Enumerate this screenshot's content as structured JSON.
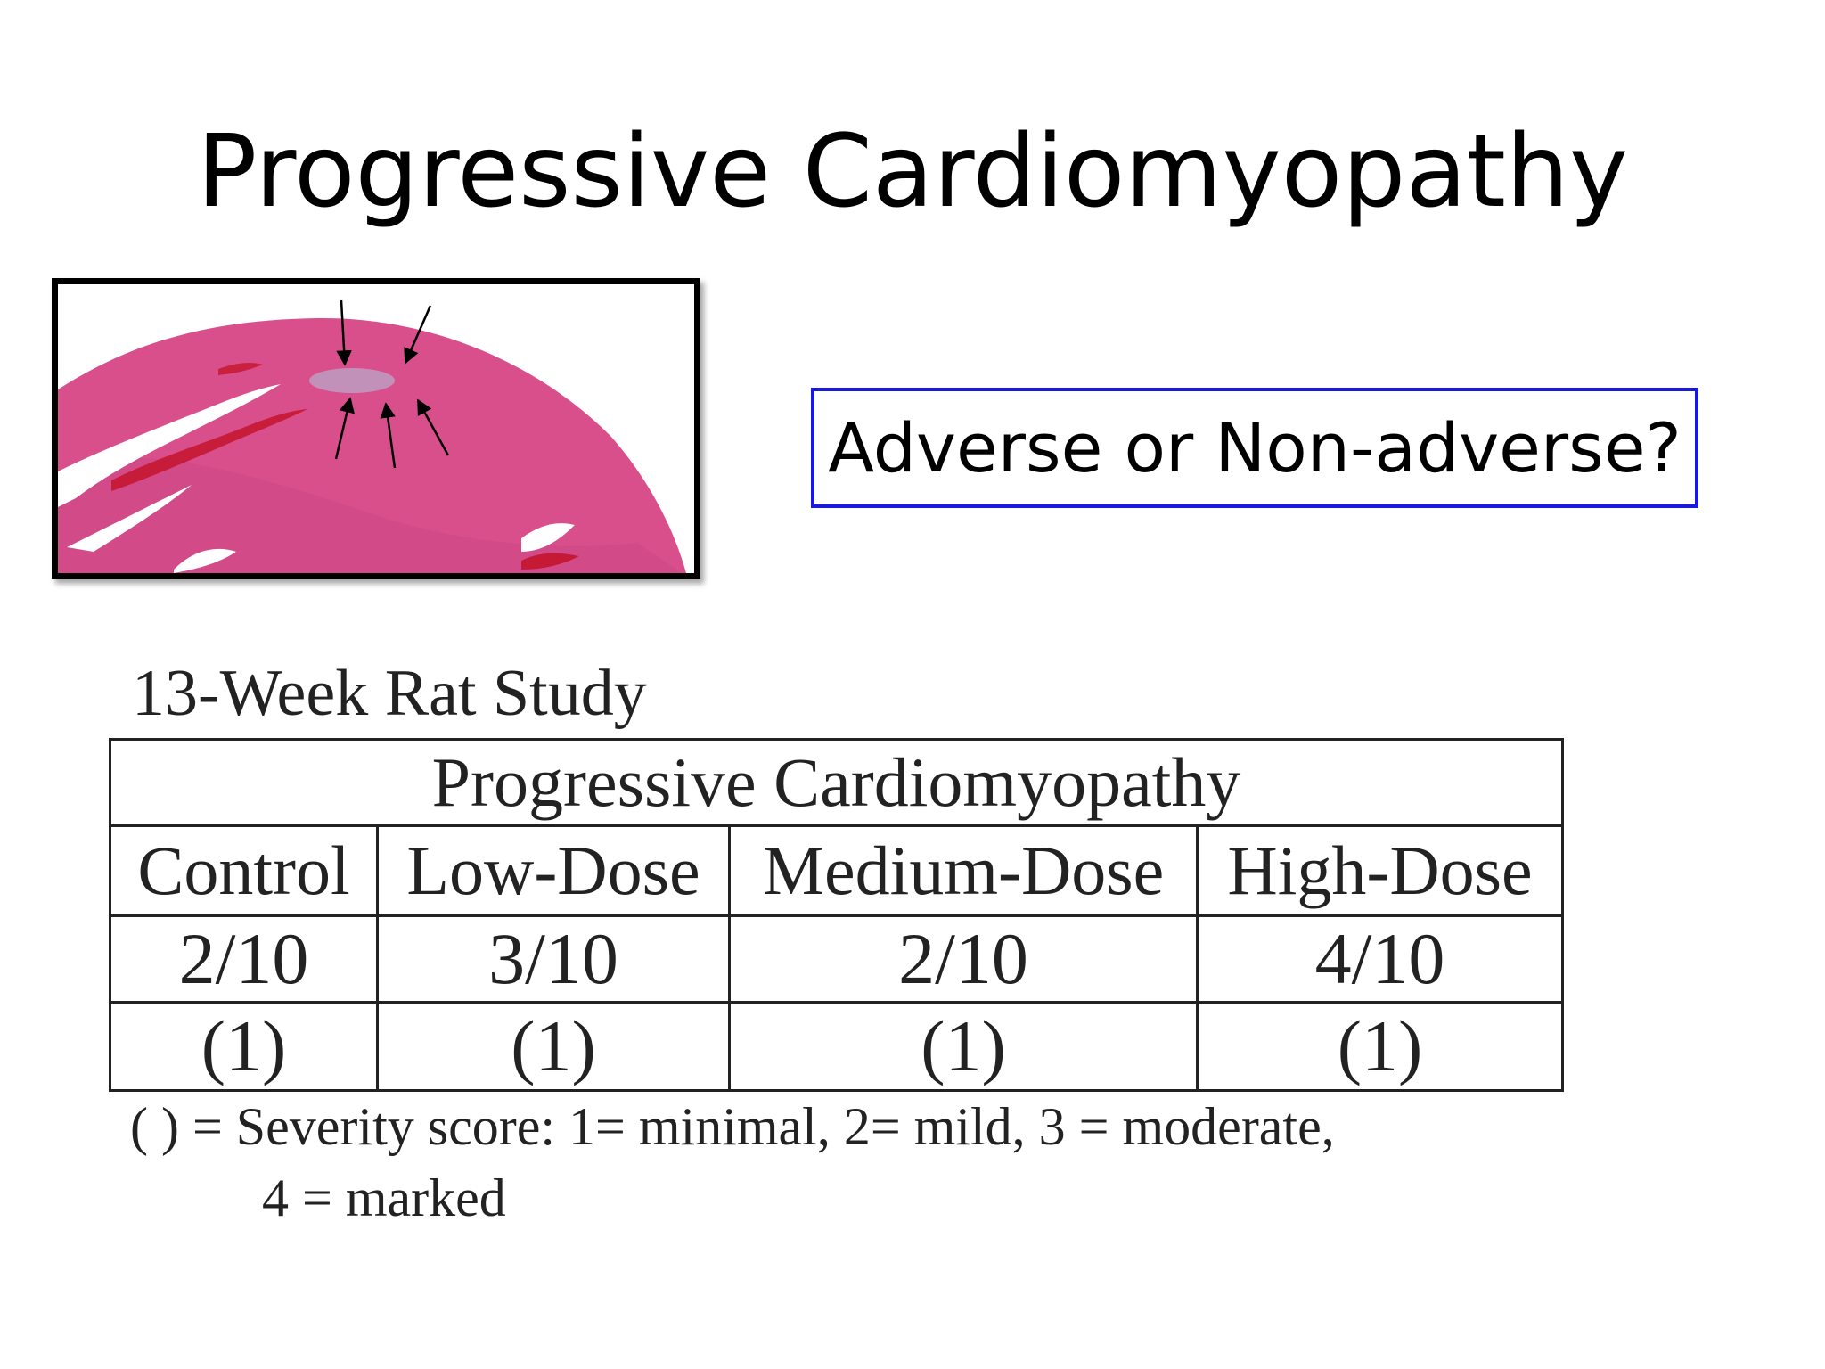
{
  "slide": {
    "title": "Progressive Cardiomyopathy",
    "question": "Adverse or Non-adverse?",
    "image_alt": "histology micrograph with arrows"
  },
  "study": {
    "label": "13-Week Rat Study",
    "table": {
      "header": "Progressive Cardiomyopathy",
      "groups": [
        "Control",
        "Low-Dose",
        "Medium-Dose",
        "High-Dose"
      ],
      "incidence": [
        "2/10",
        "3/10",
        "2/10",
        "4/10"
      ],
      "severity": [
        "(1)",
        "(1)",
        "(1)",
        "(1)"
      ]
    },
    "footnote": {
      "line1": "( ) = Severity score: 1= minimal, 2= mild, 3 = moderate,",
      "line2": "4 = marked"
    }
  },
  "colors": {
    "tissue": "#d94f8c",
    "tissue_dark": "#c93f7e",
    "question_border": "#1a1adf"
  }
}
